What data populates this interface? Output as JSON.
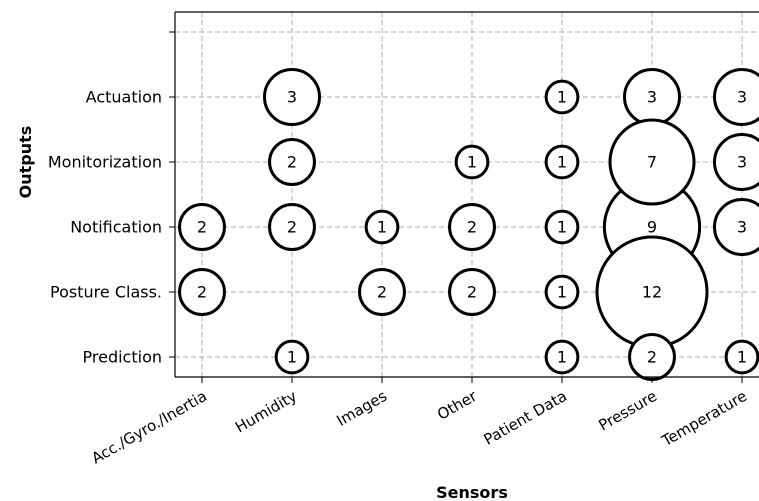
{
  "chart_data": {
    "type": "scatter",
    "subtype": "bubble",
    "xlabel": "Sensors",
    "ylabel": "Outputs",
    "x_categories": [
      "Acc./Gyro./Inertia",
      "Humidity",
      "Images",
      "Other",
      "Patient Data",
      "Pressure",
      "Temperature"
    ],
    "y_categories": [
      "Prediction",
      "Posture Class.",
      "Notification",
      "Monitorization",
      "Actuation"
    ],
    "grid": true,
    "grid_style": "dashed",
    "points": [
      {
        "x": "Humidity",
        "y": "Actuation",
        "value": 3
      },
      {
        "x": "Patient Data",
        "y": "Actuation",
        "value": 1
      },
      {
        "x": "Pressure",
        "y": "Actuation",
        "value": 3
      },
      {
        "x": "Temperature",
        "y": "Actuation",
        "value": 3
      },
      {
        "x": "Humidity",
        "y": "Monitorization",
        "value": 2
      },
      {
        "x": "Other",
        "y": "Monitorization",
        "value": 1
      },
      {
        "x": "Patient Data",
        "y": "Monitorization",
        "value": 1
      },
      {
        "x": "Temperature",
        "y": "Monitorization",
        "value": 3
      },
      {
        "x": "Acc./Gyro./Inertia",
        "y": "Notification",
        "value": 2
      },
      {
        "x": "Humidity",
        "y": "Notification",
        "value": 2
      },
      {
        "x": "Images",
        "y": "Notification",
        "value": 1
      },
      {
        "x": "Other",
        "y": "Notification",
        "value": 2
      },
      {
        "x": "Patient Data",
        "y": "Notification",
        "value": 1
      },
      {
        "x": "Pressure",
        "y": "Notification",
        "value": 9
      },
      {
        "x": "Temperature",
        "y": "Notification",
        "value": 3
      },
      {
        "x": "Acc./Gyro./Inertia",
        "y": "Posture Class.",
        "value": 2
      },
      {
        "x": "Images",
        "y": "Posture Class.",
        "value": 2
      },
      {
        "x": "Other",
        "y": "Posture Class.",
        "value": 2
      },
      {
        "x": "Patient Data",
        "y": "Posture Class.",
        "value": 1
      },
      {
        "x": "Humidity",
        "y": "Prediction",
        "value": 1
      },
      {
        "x": "Patient Data",
        "y": "Prediction",
        "value": 1
      },
      {
        "x": "Temperature",
        "y": "Prediction",
        "value": 1
      },
      {
        "x": "Pressure",
        "y": "Monitorization",
        "value": 7
      },
      {
        "x": "Pressure",
        "y": "Posture Class.",
        "value": 12
      },
      {
        "x": "Pressure",
        "y": "Prediction",
        "value": 2
      }
    ]
  }
}
